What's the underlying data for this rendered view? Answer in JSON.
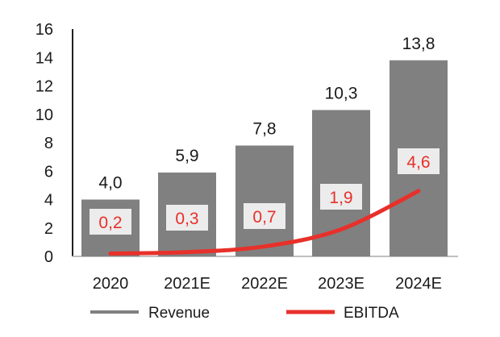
{
  "chart_data": {
    "type": "bar",
    "categories": [
      "2020",
      "2021E",
      "2022E",
      "2023E",
      "2024E"
    ],
    "series": [
      {
        "name": "Revenue",
        "type": "bar",
        "values": [
          4.0,
          5.9,
          7.8,
          10.3,
          13.8
        ],
        "labels": [
          "4,0",
          "5,9",
          "7,8",
          "10,3",
          "13,8"
        ],
        "color": "#808080"
      },
      {
        "name": "EBITDA",
        "type": "line",
        "values": [
          0.2,
          0.3,
          0.7,
          1.9,
          4.6
        ],
        "labels": [
          "0,2",
          "0,3",
          "0,7",
          "1,9",
          "4,6"
        ],
        "color": "#e8302a"
      }
    ],
    "title": "",
    "xlabel": "",
    "ylabel": "",
    "ylim": [
      0,
      16
    ],
    "yticks": [
      "0",
      "2",
      "4",
      "6",
      "8",
      "10",
      "12",
      "14",
      "16"
    ],
    "grid": false,
    "legend": "bottom"
  }
}
